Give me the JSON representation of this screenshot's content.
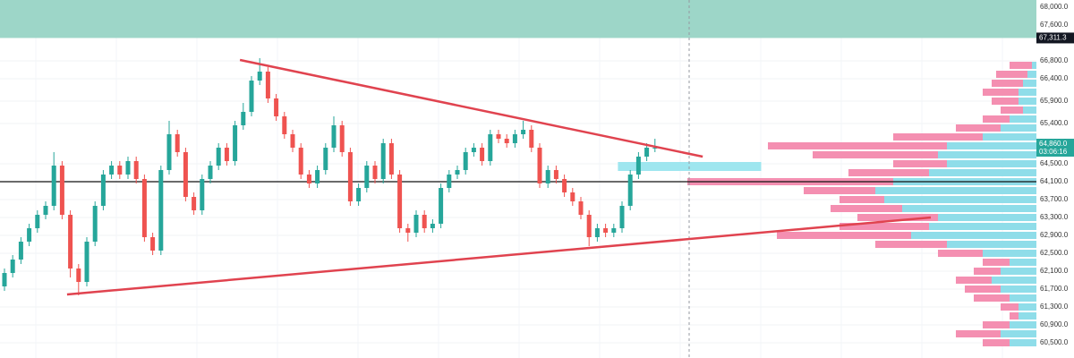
{
  "chart_data": {
    "type": "candlestick",
    "ylim": [
      60160,
      68160
    ],
    "yticks": [
      {
        "value": 68000,
        "label": "68,000.0"
      },
      {
        "value": 67600,
        "label": "67,600.0"
      },
      {
        "value": 66800,
        "label": "66,800.0"
      },
      {
        "value": 66400,
        "label": "66,400.0"
      },
      {
        "value": 65900,
        "label": "65,900.0"
      },
      {
        "value": 65400,
        "label": "65,400.0"
      },
      {
        "value": 64500,
        "label": "64,500.0"
      },
      {
        "value": 64100,
        "label": "64,100.0"
      },
      {
        "value": 63700,
        "label": "63,700.0"
      },
      {
        "value": 63300,
        "label": "63,300.0"
      },
      {
        "value": 62900,
        "label": "62,900.0"
      },
      {
        "value": 62500,
        "label": "62,500.0"
      },
      {
        "value": 62100,
        "label": "62,100.0"
      },
      {
        "value": 61700,
        "label": "61,700.0"
      },
      {
        "value": 61300,
        "label": "61,300.0"
      },
      {
        "value": 60900,
        "label": "60,900.0"
      },
      {
        "value": 60500,
        "label": "60,500.0"
      }
    ],
    "grid": true,
    "up_color": "#26a69a",
    "down_color": "#ef5350",
    "open": [
      61760,
      62060,
      62360,
      62760,
      63060,
      63360,
      63560,
      64460,
      63360,
      62160,
      61860,
      62760,
      63560,
      64260,
      64460,
      64260,
      64560,
      64160,
      62860,
      62560,
      64360,
      65160,
      64760,
      63760,
      63460,
      64160,
      64460,
      64860,
      64560,
      65360,
      65660,
      66360,
      66560,
      65960,
      65560,
      65160,
      64860,
      64260,
      64060,
      64360,
      64860,
      65360,
      64760,
      63660,
      63960,
      64460,
      64160,
      64960,
      64260,
      63060,
      62960,
      63360,
      63060,
      63160,
      63960,
      64260,
      64360,
      64760,
      64860,
      64560,
      65160,
      65060,
      64960,
      65160,
      65260,
      64860,
      64060,
      64360,
      64160,
      63860,
      63660,
      63360,
      62860,
      63060,
      62960,
      63060,
      63560,
      64260,
      64660,
      64860
    ],
    "high": [
      62160,
      62460,
      62860,
      63160,
      63460,
      63660,
      64760,
      64560,
      63460,
      62260,
      62860,
      63660,
      64360,
      64560,
      64560,
      64660,
      64660,
      64260,
      62960,
      64460,
      65460,
      65260,
      64860,
      63860,
      64260,
      64560,
      64960,
      64960,
      65460,
      65860,
      66460,
      66860,
      66660,
      66060,
      65660,
      65260,
      64960,
      64360,
      64460,
      64960,
      65560,
      65460,
      64860,
      64060,
      64560,
      64560,
      65060,
      65060,
      64360,
      63160,
      63460,
      63460,
      63260,
      64060,
      64360,
      64460,
      64860,
      64960,
      64960,
      65260,
      65260,
      65160,
      65260,
      65460,
      65360,
      64960,
      64460,
      64460,
      64260,
      63960,
      63760,
      63460,
      63160,
      63160,
      63160,
      63660,
      64360,
      64760,
      64960,
      65060
    ],
    "low": [
      61660,
      61960,
      62260,
      62660,
      62960,
      63260,
      63460,
      63260,
      61960,
      61560,
      61760,
      62660,
      63460,
      64160,
      64160,
      64160,
      64060,
      62760,
      62460,
      62460,
      64260,
      64660,
      63660,
      63360,
      63360,
      64060,
      64360,
      64460,
      64460,
      65260,
      65560,
      66260,
      65860,
      65460,
      65060,
      64760,
      64160,
      63960,
      63960,
      64260,
      64760,
      64660,
      63560,
      63560,
      63860,
      64060,
      64060,
      64160,
      62960,
      62760,
      62860,
      62960,
      62960,
      63060,
      63860,
      64160,
      64260,
      64660,
      64460,
      64460,
      64960,
      64860,
      64860,
      65060,
      64760,
      63960,
      63960,
      64060,
      63760,
      63560,
      63260,
      62660,
      62760,
      62860,
      62860,
      62960,
      63460,
      64160,
      64560,
      64760
    ],
    "close": [
      62060,
      62360,
      62760,
      63060,
      63360,
      63560,
      64460,
      63360,
      62160,
      61860,
      62760,
      63560,
      64260,
      64460,
      64260,
      64560,
      64160,
      62860,
      62560,
      64360,
      65160,
      64760,
      63760,
      63460,
      64160,
      64460,
      64860,
      64560,
      65360,
      65660,
      66360,
      66560,
      65960,
      65560,
      65160,
      64860,
      64260,
      64060,
      64360,
      64860,
      65360,
      64760,
      63660,
      63960,
      64460,
      64160,
      64960,
      64260,
      63060,
      62960,
      63360,
      63060,
      63160,
      63960,
      64260,
      64360,
      64760,
      64860,
      64560,
      65160,
      65060,
      64960,
      65160,
      65260,
      64860,
      64060,
      64360,
      64160,
      63860,
      63660,
      63360,
      62860,
      63060,
      62960,
      63060,
      63560,
      64260,
      64660,
      64860,
      64860
    ],
    "volume_profile": {
      "levels": [
        66700,
        66500,
        66300,
        66100,
        65900,
        65700,
        65500,
        65300,
        65100,
        64900,
        64700,
        64500,
        64300,
        64100,
        63900,
        63700,
        63500,
        63300,
        63100,
        62900,
        62700,
        62500,
        62300,
        62100,
        61900,
        61700,
        61500,
        61300,
        61100,
        60900,
        60700,
        60500
      ],
      "buy": [
        5,
        10,
        15,
        20,
        20,
        15,
        30,
        40,
        60,
        100,
        110,
        100,
        120,
        160,
        180,
        170,
        150,
        110,
        120,
        140,
        100,
        60,
        30,
        40,
        50,
        40,
        30,
        20,
        20,
        30,
        40,
        30
      ],
      "sell": [
        25,
        35,
        35,
        40,
        30,
        25,
        30,
        50,
        100,
        200,
        140,
        60,
        90,
        230,
        80,
        50,
        80,
        90,
        100,
        150,
        80,
        50,
        30,
        30,
        40,
        40,
        40,
        20,
        10,
        30,
        50,
        30
      ],
      "buy_color": "#8fdde9",
      "sell_color": "#f48fb1"
    },
    "zone": {
      "low": 67311.3,
      "high": 68160,
      "color": "#9dd6c8"
    },
    "zone_label": {
      "value": 67311.3,
      "label": "67,311.3"
    },
    "box": {
      "from": 74.5,
      "to": 91.9,
      "low": 64340,
      "high": 64540,
      "color": "#9ee6ef"
    },
    "hline": 64100,
    "trendlines": [
      {
        "from": [
          28.6,
          66820
        ],
        "to": [
          84.8,
          64660
        ],
        "color": "#e0434f"
      },
      {
        "from": [
          7.6,
          61580
        ],
        "to": [
          112.5,
          63300
        ],
        "color": "#e0434f"
      }
    ],
    "last_price_label": "64,860.0",
    "countdown": "03:06:16"
  }
}
